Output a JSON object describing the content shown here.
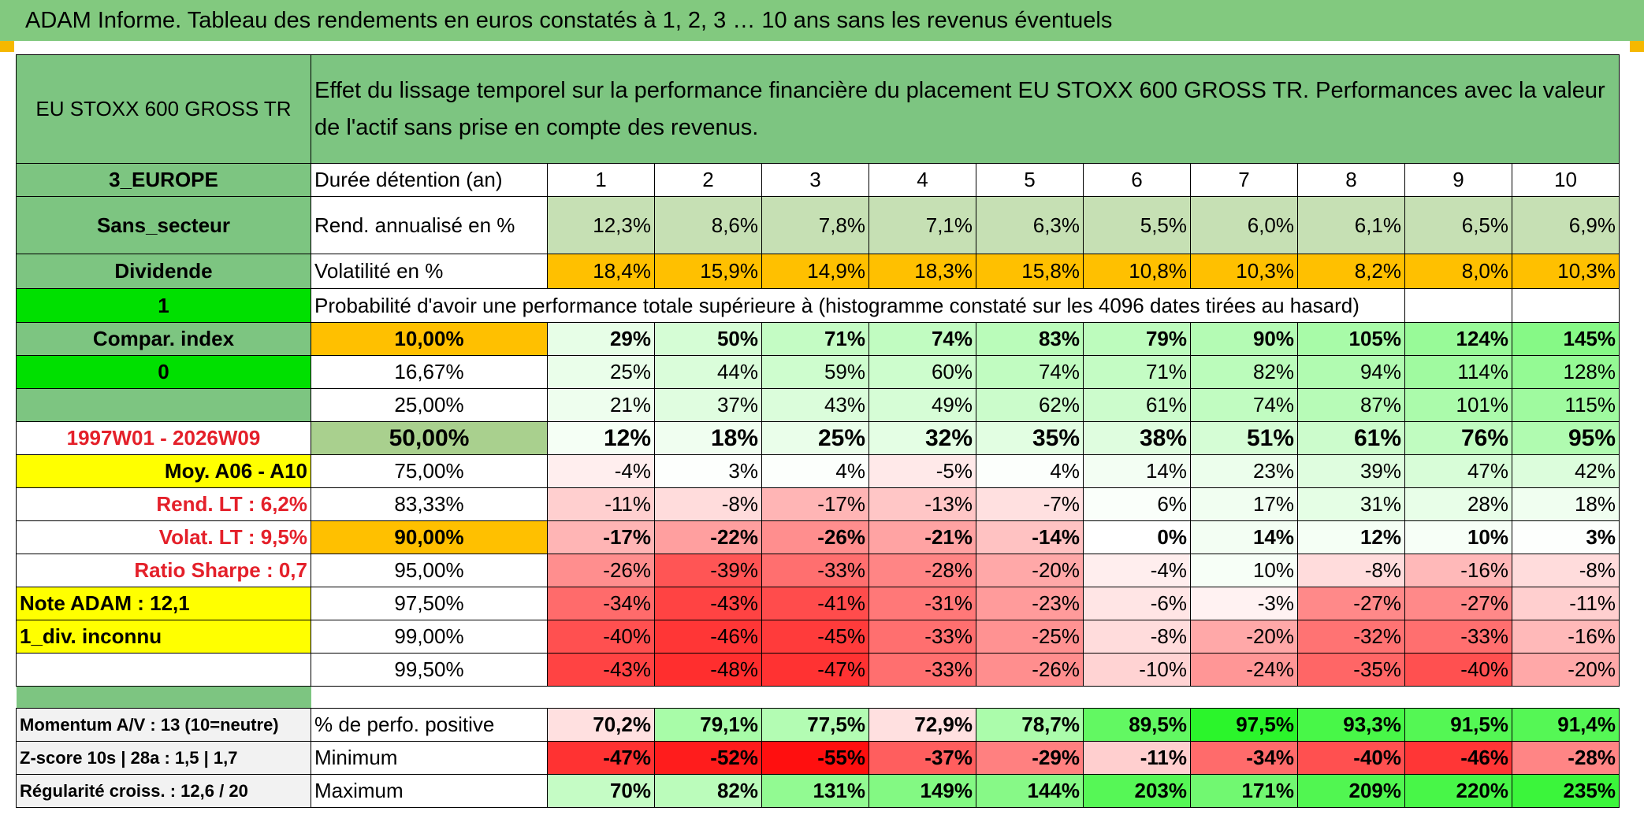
{
  "title": "ADAM Informe. Tableau des rendements en euros constatés à 1, 2, 3 … 10 ans sans les revenus éventuels",
  "header": {
    "fund": "EU STOXX 600 GROSS TR",
    "description": "Effet du lissage temporel sur la performance financière du placement EU STOXX 600 GROSS TR. Performances avec la valeur de l'actif sans prise en compte des revenus."
  },
  "left": {
    "region": "3_EUROPE",
    "sector": "Sans_secteur",
    "dividend": "Dividende",
    "flag1": "1",
    "compar": "Compar. index",
    "flag0": "0",
    "blank": "",
    "period": "1997W01 - 2026W09",
    "moy": "Moy. A06 - A10",
    "rend_lt": "Rend. LT :   6,2%",
    "volat_lt": "Volat. LT :   9,5%",
    "sharpe": "Ratio Sharpe :    0,7",
    "note": "Note ADAM : 12,1",
    "div": "1_div. inconnu"
  },
  "years": {
    "label": "Durée détention (an)",
    "values": [
      "1",
      "2",
      "3",
      "4",
      "5",
      "6",
      "7",
      "8",
      "9",
      "10"
    ]
  },
  "rend": {
    "label": "Rend. annualisé en %",
    "values": [
      "12,3%",
      "8,6%",
      "7,8%",
      "7,1%",
      "6,3%",
      "5,5%",
      "6,0%",
      "6,1%",
      "6,5%",
      "6,9%"
    ]
  },
  "vol": {
    "label": "Volatilité en %",
    "values": [
      "18,4%",
      "15,9%",
      "14,9%",
      "18,3%",
      "15,8%",
      "10,8%",
      "10,3%",
      "8,2%",
      "8,0%",
      "10,3%"
    ]
  },
  "prob_title": "Probabilité d'avoir une performance totale supérieure à (histogramme constaté sur les 4096 dates tirées au hasard)",
  "prob_rows": [
    {
      "label": "10,00%",
      "values": [
        "29%",
        "50%",
        "71%",
        "74%",
        "83%",
        "79%",
        "90%",
        "105%",
        "124%",
        "145%"
      ]
    },
    {
      "label": "16,67%",
      "values": [
        "25%",
        "44%",
        "59%",
        "60%",
        "74%",
        "71%",
        "82%",
        "94%",
        "114%",
        "128%"
      ]
    },
    {
      "label": "25,00%",
      "values": [
        "21%",
        "37%",
        "43%",
        "49%",
        "62%",
        "61%",
        "74%",
        "87%",
        "101%",
        "115%"
      ]
    },
    {
      "label": "50,00%",
      "values": [
        "12%",
        "18%",
        "25%",
        "32%",
        "35%",
        "38%",
        "51%",
        "61%",
        "76%",
        "95%"
      ]
    },
    {
      "label": "75,00%",
      "values": [
        "-4%",
        "3%",
        "4%",
        "-5%",
        "4%",
        "14%",
        "23%",
        "39%",
        "47%",
        "42%"
      ]
    },
    {
      "label": "83,33%",
      "values": [
        "-11%",
        "-8%",
        "-17%",
        "-13%",
        "-7%",
        "6%",
        "17%",
        "31%",
        "28%",
        "18%"
      ]
    },
    {
      "label": "90,00%",
      "values": [
        "-17%",
        "-22%",
        "-26%",
        "-21%",
        "-14%",
        "0%",
        "14%",
        "12%",
        "10%",
        "3%"
      ]
    },
    {
      "label": "95,00%",
      "values": [
        "-26%",
        "-39%",
        "-33%",
        "-28%",
        "-20%",
        "-4%",
        "10%",
        "-8%",
        "-16%",
        "-8%"
      ]
    },
    {
      "label": "97,50%",
      "values": [
        "-34%",
        "-43%",
        "-41%",
        "-31%",
        "-23%",
        "-6%",
        "-3%",
        "-27%",
        "-27%",
        "-11%"
      ]
    },
    {
      "label": "99,00%",
      "values": [
        "-40%",
        "-46%",
        "-45%",
        "-33%",
        "-25%",
        "-8%",
        "-20%",
        "-32%",
        "-33%",
        "-16%"
      ]
    },
    {
      "label": "99,50%",
      "values": [
        "-43%",
        "-48%",
        "-47%",
        "-33%",
        "-26%",
        "-10%",
        "-24%",
        "-35%",
        "-40%",
        "-20%"
      ]
    }
  ],
  "bottom": {
    "momentum": "Momentum A/V : 13 (10=neutre)",
    "zscore": "Z-score 10s | 28a : 1,5 | 1,7",
    "regular": "Régularité croiss. : 12,6 / 20",
    "positive": {
      "label": "% de perfo. positive",
      "values": [
        "70,2%",
        "79,1%",
        "77,5%",
        "72,9%",
        "78,7%",
        "89,5%",
        "97,5%",
        "93,3%",
        "91,5%",
        "91,4%"
      ]
    },
    "minimum": {
      "label": "Minimum",
      "values": [
        "-47%",
        "-52%",
        "-55%",
        "-37%",
        "-29%",
        "-11%",
        "-34%",
        "-40%",
        "-46%",
        "-28%"
      ]
    },
    "maximum": {
      "label": "Maximum",
      "values": [
        "70%",
        "82%",
        "131%",
        "149%",
        "144%",
        "203%",
        "171%",
        "209%",
        "220%",
        "235%"
      ]
    }
  },
  "colors": {
    "header_green": "#82c97f",
    "left_green": "#7dc581",
    "bright_green": "#00e000",
    "orange": "#ffc000",
    "yellow": "#ffff00",
    "red_text": "#e4202a"
  }
}
